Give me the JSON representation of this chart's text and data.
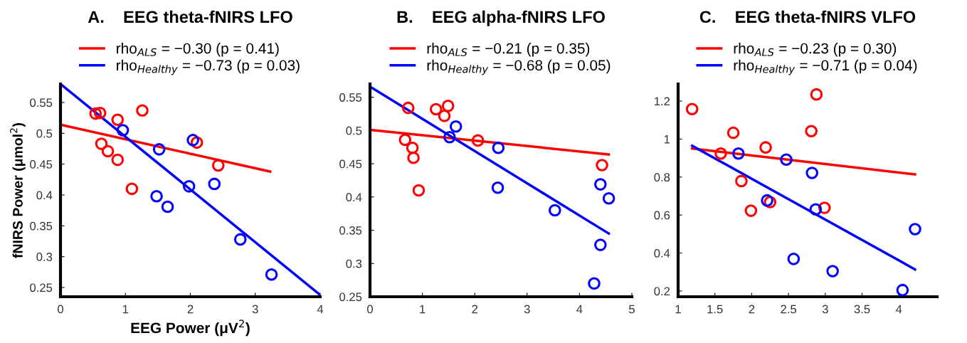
{
  "chart_data": [
    {
      "type": "scatter",
      "title": "A.    EEG theta-fNIRS LFO",
      "xlabel": "EEG Power (μV$^{2}$)",
      "ylabel": "fNIRS Power (μmol$^{2}$)",
      "xlim": [
        0,
        4
      ],
      "ylim": [
        0.235,
        0.58
      ],
      "xticks": [
        0,
        1,
        2,
        3,
        4
      ],
      "yticks": [
        0.25,
        0.3,
        0.35,
        0.4,
        0.45,
        0.5,
        0.55
      ],
      "grid": false,
      "legend": "top",
      "series": [
        {
          "marker": "circle",
          "color": "#ff0000",
          "x": [
            0.54,
            0.61,
            0.63,
            0.73,
            0.88,
            0.88,
            1.1,
            1.26,
            2.1,
            2.43
          ],
          "values": [
            0.532,
            0.533,
            0.483,
            0.471,
            0.522,
            0.457,
            0.41,
            0.537,
            0.485,
            0.448
          ]
        },
        {
          "marker": "circle",
          "color": "#0000ff",
          "x": [
            0.96,
            1.52,
            1.48,
            1.65,
            2.04,
            1.98,
            2.37,
            2.77,
            3.25
          ],
          "values": [
            0.505,
            0.474,
            0.398,
            0.381,
            0.489,
            0.414,
            0.418,
            0.328,
            0.271
          ]
        },
        {
          "type": "line",
          "marker": "none",
          "line_style": "solid",
          "name": "rho$_{ALS}$ = −0.30 (p = 0.41)",
          "color": "#ff0000",
          "x": [
            0,
            3.23
          ],
          "values": [
            0.514,
            0.438
          ]
        },
        {
          "type": "line",
          "marker": "none",
          "line_style": "solid",
          "name": "rho$_{Healthy}$ = −0.73 (p = 0.03)",
          "color": "#0000ff",
          "x": [
            0,
            4
          ],
          "values": [
            0.58,
            0.238
          ]
        }
      ]
    },
    {
      "type": "scatter",
      "title": "B.    EEG alpha-fNIRS LFO",
      "xlim": [
        0,
        5
      ],
      "ylim": [
        0.25,
        0.57
      ],
      "xticks": [
        0,
        1,
        2,
        3,
        4,
        5
      ],
      "yticks": [
        0.25,
        0.3,
        0.35,
        0.4,
        0.45,
        0.5,
        0.55
      ],
      "grid": false,
      "legend": "top",
      "series": [
        {
          "marker": "circle",
          "color": "#ff0000",
          "x": [
            0.73,
            0.67,
            0.81,
            0.83,
            0.93,
            1.26,
            1.42,
            1.49,
            2.06,
            4.43
          ],
          "values": [
            0.534,
            0.486,
            0.474,
            0.459,
            0.41,
            0.532,
            0.522,
            0.537,
            0.485,
            0.448
          ]
        },
        {
          "marker": "circle",
          "color": "#0000ff",
          "x": [
            1.52,
            1.64,
            2.45,
            2.44,
            3.53,
            4.4,
            4.56,
            4.4,
            4.28
          ],
          "values": [
            0.49,
            0.506,
            0.474,
            0.414,
            0.38,
            0.419,
            0.398,
            0.328,
            0.27
          ]
        },
        {
          "type": "line",
          "marker": "none",
          "line_style": "solid",
          "name": "rho$_{ALS}$ = −0.21 (p = 0.35)",
          "color": "#ff0000",
          "x": [
            0,
            4.56
          ],
          "values": [
            0.501,
            0.464
          ]
        },
        {
          "type": "line",
          "marker": "none",
          "line_style": "solid",
          "name": "rho$_{Healthy}$ = −0.68 (p = 0.05)",
          "color": "#0000ff",
          "x": [
            0,
            4.56
          ],
          "values": [
            0.566,
            0.345
          ]
        }
      ]
    },
    {
      "type": "scatter",
      "title": "C.    EEG theta-fNIRS VLFO",
      "xlim": [
        1,
        4.52
      ],
      "ylim": [
        0.17,
        1.29
      ],
      "xticks": [
        1,
        1.5,
        2,
        2.5,
        3,
        3.5,
        4
      ],
      "yticks": [
        0.2,
        0.4,
        0.6,
        0.8,
        1,
        1.2
      ],
      "grid": false,
      "legend": "top",
      "series": [
        {
          "marker": "circle",
          "color": "#ff0000",
          "x": [
            1.19,
            1.58,
            1.75,
            1.86,
            1.99,
            2.19,
            2.25,
            2.81,
            2.88,
            2.99
          ],
          "values": [
            1.158,
            0.924,
            1.033,
            0.779,
            0.623,
            0.956,
            0.668,
            1.042,
            1.235,
            0.638
          ]
        },
        {
          "marker": "circle",
          "color": "#0000ff",
          "x": [
            1.82,
            2.21,
            2.47,
            2.57,
            2.82,
            2.87,
            3.1,
            4.05,
            4.22
          ],
          "values": [
            0.924,
            0.677,
            0.892,
            0.369,
            0.822,
            0.63,
            0.305,
            0.205,
            0.526
          ]
        },
        {
          "type": "line",
          "marker": "none",
          "line_style": "solid",
          "name": "rho$_{ALS}$ = −0.23 (p = 0.30)",
          "color": "#ff0000",
          "x": [
            1.19,
            4.22
          ],
          "values": [
            0.95,
            0.814
          ]
        },
        {
          "type": "line",
          "marker": "none",
          "line_style": "solid",
          "name": "rho$_{Healthy}$ = −0.71 (p = 0.04)",
          "color": "#0000ff",
          "x": [
            1.19,
            4.22
          ],
          "values": [
            0.965,
            0.314
          ]
        }
      ]
    }
  ]
}
